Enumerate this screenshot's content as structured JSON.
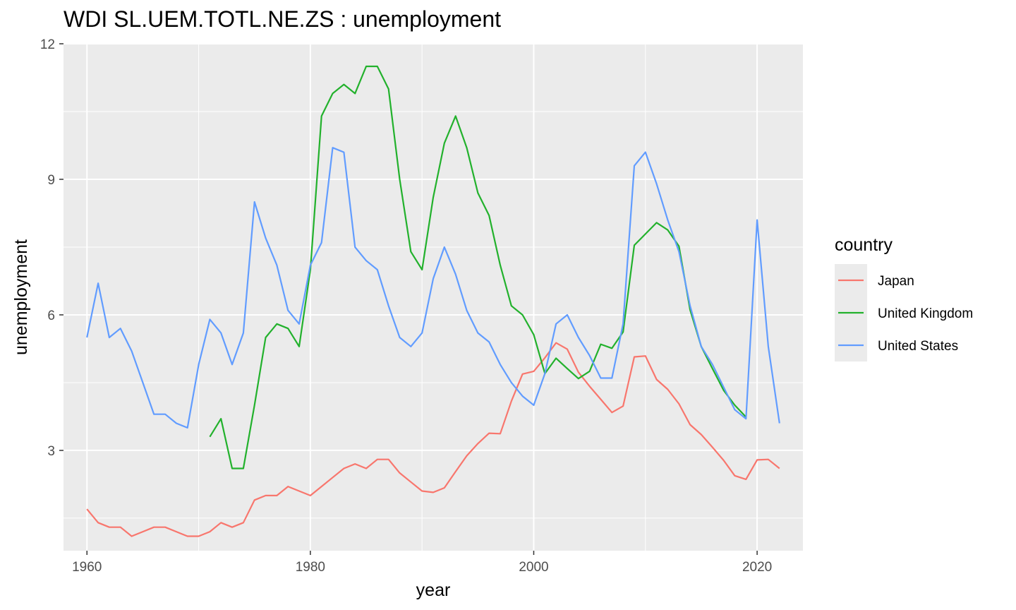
{
  "chart_data": {
    "type": "line",
    "title": "WDI  SL.UEM.TOTL.NE.ZS :  unemployment",
    "xlabel": "year",
    "ylabel": "unemployment",
    "xlim": [
      1957.9,
      2024.1
    ],
    "ylim": [
      0.78,
      12.0
    ],
    "xticks": [
      1960,
      1980,
      2000,
      2020
    ],
    "yticks": [
      3,
      6,
      9,
      12
    ],
    "grid": true,
    "legend": {
      "title": "country",
      "position": "right"
    },
    "series": [
      {
        "name": "Japan",
        "color": "#F8766D",
        "x": [
          1960,
          1961,
          1962,
          1963,
          1964,
          1965,
          1966,
          1967,
          1968,
          1969,
          1970,
          1971,
          1972,
          1973,
          1974,
          1975,
          1976,
          1977,
          1978,
          1979,
          1980,
          1981,
          1982,
          1983,
          1984,
          1985,
          1986,
          1987,
          1988,
          1989,
          1990,
          1991,
          1992,
          1993,
          1994,
          1995,
          1996,
          1997,
          1998,
          1999,
          2000,
          2001,
          2002,
          2003,
          2004,
          2005,
          2006,
          2007,
          2008,
          2009,
          2010,
          2011,
          2012,
          2013,
          2014,
          2015,
          2016,
          2017,
          2018,
          2019,
          2020,
          2021,
          2022
        ],
        "values": [
          1.7,
          1.4,
          1.3,
          1.3,
          1.1,
          1.2,
          1.3,
          1.3,
          1.2,
          1.1,
          1.1,
          1.2,
          1.4,
          1.3,
          1.4,
          1.9,
          2.0,
          2.0,
          2.2,
          2.1,
          2.0,
          2.2,
          2.4,
          2.6,
          2.7,
          2.6,
          2.8,
          2.8,
          2.5,
          2.3,
          2.1,
          2.07,
          2.17,
          2.53,
          2.88,
          3.15,
          3.38,
          3.37,
          4.09,
          4.69,
          4.75,
          5.05,
          5.38,
          5.24,
          4.73,
          4.42,
          4.13,
          3.84,
          3.98,
          5.07,
          5.09,
          4.57,
          4.35,
          4.03,
          3.57,
          3.35,
          3.07,
          2.78,
          2.44,
          2.36,
          2.79,
          2.8,
          2.6
        ]
      },
      {
        "name": "United Kingdom",
        "color": "#22B12C",
        "x": [
          1971,
          1972,
          1973,
          1974,
          1975,
          1976,
          1977,
          1978,
          1979,
          1980,
          1981,
          1982,
          1983,
          1984,
          1985,
          1986,
          1987,
          1988,
          1989,
          1990,
          1991,
          1992,
          1993,
          1994,
          1995,
          1996,
          1997,
          1998,
          1999,
          2000,
          2001,
          2002,
          2003,
          2004,
          2005,
          2006,
          2007,
          2008,
          2009,
          2010,
          2011,
          2012,
          2013,
          2014,
          2015,
          2016,
          2017,
          2018,
          2019
        ],
        "values": [
          3.3,
          3.7,
          2.6,
          2.6,
          4.0,
          5.5,
          5.8,
          5.7,
          5.3,
          7.0,
          10.4,
          10.9,
          11.1,
          10.9,
          11.5,
          11.5,
          11.0,
          9.0,
          7.4,
          7.0,
          8.6,
          9.8,
          10.4,
          9.7,
          8.7,
          8.2,
          7.1,
          6.2,
          6.0,
          5.56,
          4.7,
          5.04,
          4.81,
          4.59,
          4.75,
          5.35,
          5.26,
          5.62,
          7.54,
          7.79,
          8.04,
          7.88,
          7.52,
          6.11,
          5.3,
          4.81,
          4.33,
          4.0,
          3.74
        ]
      },
      {
        "name": "United States",
        "color": "#619CFF",
        "x": [
          1960,
          1961,
          1962,
          1963,
          1964,
          1965,
          1966,
          1967,
          1968,
          1969,
          1970,
          1971,
          1972,
          1973,
          1974,
          1975,
          1976,
          1977,
          1978,
          1979,
          1980,
          1981,
          1982,
          1983,
          1984,
          1985,
          1986,
          1987,
          1988,
          1989,
          1990,
          1991,
          1992,
          1993,
          1994,
          1995,
          1996,
          1997,
          1998,
          1999,
          2000,
          2001,
          2002,
          2003,
          2004,
          2005,
          2006,
          2007,
          2008,
          2009,
          2010,
          2011,
          2012,
          2013,
          2014,
          2015,
          2016,
          2017,
          2018,
          2019,
          2020,
          2021,
          2022
        ],
        "values": [
          5.5,
          6.7,
          5.5,
          5.7,
          5.2,
          4.5,
          3.8,
          3.8,
          3.6,
          3.5,
          4.9,
          5.9,
          5.6,
          4.9,
          5.6,
          8.5,
          7.7,
          7.1,
          6.1,
          5.8,
          7.1,
          7.6,
          9.7,
          9.6,
          7.5,
          7.2,
          7.0,
          6.2,
          5.5,
          5.3,
          5.6,
          6.8,
          7.5,
          6.9,
          6.1,
          5.6,
          5.4,
          4.9,
          4.5,
          4.2,
          4.0,
          4.7,
          5.8,
          6.0,
          5.5,
          5.1,
          4.6,
          4.6,
          5.8,
          9.3,
          9.6,
          8.9,
          8.1,
          7.4,
          6.2,
          5.3,
          4.9,
          4.4,
          3.9,
          3.7,
          8.1,
          5.3,
          3.6
        ]
      }
    ]
  }
}
